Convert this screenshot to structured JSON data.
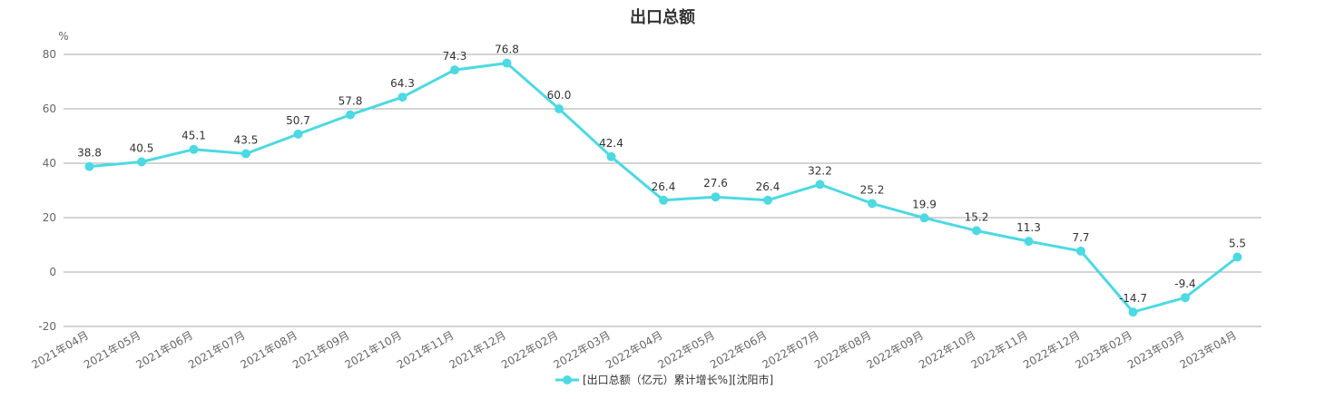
{
  "chart_data": {
    "type": "line",
    "title": "出口总额",
    "ylabel": "%",
    "ylim": [
      -20,
      80
    ],
    "yticks": [
      "80",
      "60",
      "40",
      "20",
      "0",
      "-20"
    ],
    "grid": true,
    "legend_position": "bottom-center",
    "categories": [
      "2021年04月",
      "2021年05月",
      "2021年06月",
      "2021年07月",
      "2021年08月",
      "2021年09月",
      "2021年10月",
      "2021年11月",
      "2021年12月",
      "2022年02月",
      "2022年03月",
      "2022年04月",
      "2022年05月",
      "2022年06月",
      "2022年07月",
      "2022年08月",
      "2022年09月",
      "2022年10月",
      "2022年11月",
      "2022年12月",
      "2023年02月",
      "2023年03月",
      "2023年04月"
    ],
    "series": [
      {
        "name": "[出口总额（亿元）累计增长%][沈阳市]",
        "color": "#4dd9e2",
        "values": [
          38.8,
          40.5,
          45.1,
          43.5,
          50.7,
          57.8,
          64.3,
          74.3,
          76.8,
          60.0,
          42.4,
          26.4,
          27.6,
          26.4,
          32.2,
          25.2,
          19.9,
          15.2,
          11.3,
          7.7,
          -14.7,
          -9.4,
          5.5
        ],
        "labels": [
          "38.8",
          "40.5",
          "45.1",
          "43.5",
          "50.7",
          "57.8",
          "64.3",
          "74.3",
          "76.8",
          "60.0",
          "42.4",
          "26.4",
          "27.6",
          "26.4",
          "32.2",
          "25.2",
          "19.9",
          "15.2",
          "11.3",
          "7.7",
          "-14.7",
          "-9.4",
          "5.5"
        ]
      }
    ]
  }
}
